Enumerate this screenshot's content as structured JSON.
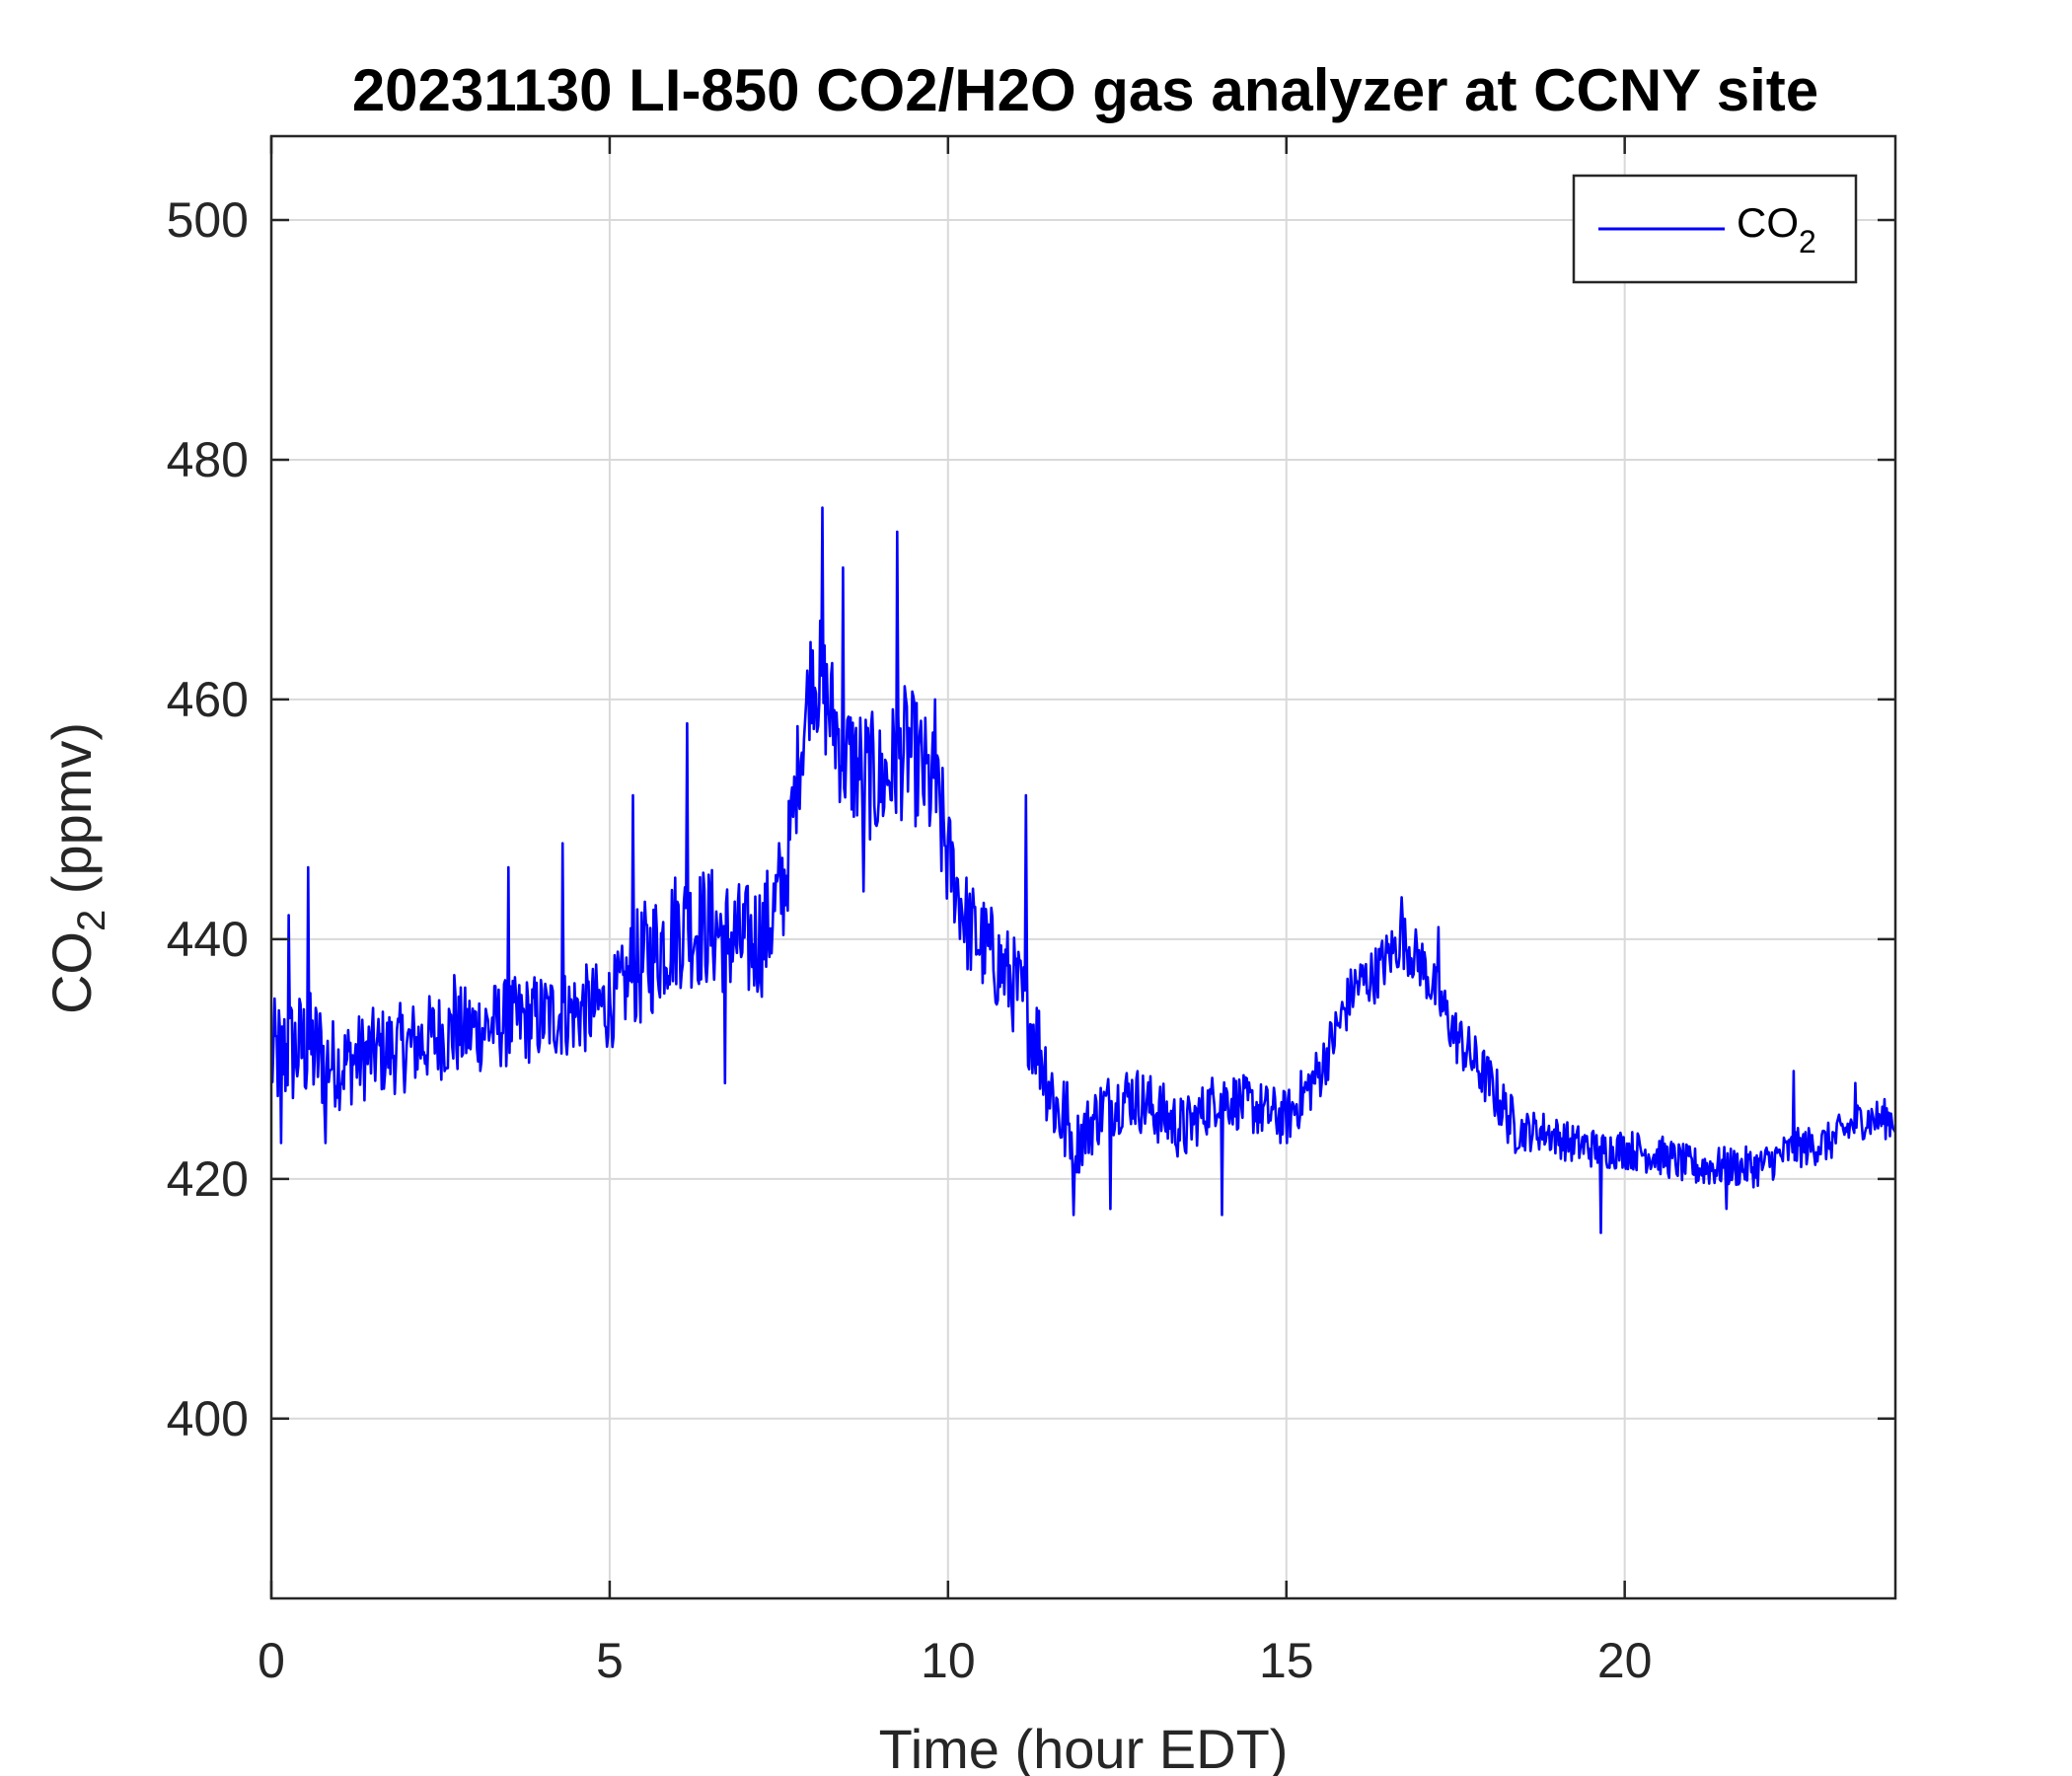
{
  "chart_data": {
    "type": "line",
    "title": "20231130 LI-850 CO2/H2O gas analyzer at CCNY site",
    "xlabel": "Time (hour EDT)",
    "ylabel": {
      "base": "CO",
      "sub": "2",
      "rest": " (ppmv)"
    },
    "xlim": [
      0,
      24
    ],
    "ylim": [
      385,
      507
    ],
    "xticks": [
      0,
      5,
      10,
      15,
      20
    ],
    "yticks": [
      400,
      420,
      440,
      460,
      480,
      500
    ],
    "grid": true,
    "legend_position": "top-right",
    "colors": {
      "line": "#0000ff",
      "grid": "#d9d9d9",
      "axis": "#262626"
    },
    "series": [
      {
        "name": {
          "base": "CO",
          "sub": "2"
        },
        "keypoints": [
          [
            0,
            430
          ],
          [
            0.5,
            431
          ],
          [
            1,
            429.5
          ],
          [
            1.5,
            430.5
          ],
          [
            2,
            431
          ],
          [
            2.5,
            432
          ],
          [
            3,
            432.5
          ],
          [
            3.5,
            433
          ],
          [
            4,
            433.5
          ],
          [
            4.5,
            434
          ],
          [
            5,
            434.5
          ],
          [
            5.5,
            438
          ],
          [
            6,
            441
          ],
          [
            6.5,
            441
          ],
          [
            7,
            439.5
          ],
          [
            7.3,
            440.5
          ],
          [
            7.6,
            445
          ],
          [
            7.8,
            455
          ],
          [
            8,
            463
          ],
          [
            8.2,
            460
          ],
          [
            8.5,
            455
          ],
          [
            9,
            453
          ],
          [
            9.4,
            456
          ],
          [
            9.8,
            452
          ],
          [
            10,
            447
          ],
          [
            10.3,
            441
          ],
          [
            10.6,
            439
          ],
          [
            11,
            436
          ],
          [
            11.3,
            432
          ],
          [
            11.6,
            426
          ],
          [
            11.9,
            423
          ],
          [
            12.3,
            426
          ],
          [
            12.7,
            427
          ],
          [
            13,
            426
          ],
          [
            13.5,
            424
          ],
          [
            14,
            427
          ],
          [
            14.5,
            426
          ],
          [
            15,
            425
          ],
          [
            15.5,
            429
          ],
          [
            16,
            436
          ],
          [
            16.3,
            437
          ],
          [
            16.7,
            440
          ],
          [
            17,
            438
          ],
          [
            17.5,
            432
          ],
          [
            18,
            428
          ],
          [
            18.4,
            424
          ],
          [
            18.8,
            424
          ],
          [
            19.2,
            423
          ],
          [
            19.6,
            422.5
          ],
          [
            20,
            422.5
          ],
          [
            20.5,
            422
          ],
          [
            21,
            421
          ],
          [
            21.5,
            421
          ],
          [
            22,
            421
          ],
          [
            22.5,
            422.5
          ],
          [
            23,
            423
          ],
          [
            23.5,
            425
          ],
          [
            24,
            425
          ]
        ],
        "spikes": [
          [
            0.55,
            446
          ],
          [
            0.25,
            442
          ],
          [
            0.15,
            423
          ],
          [
            0.8,
            423
          ],
          [
            2.7,
            437
          ],
          [
            3.5,
            446
          ],
          [
            4.3,
            448
          ],
          [
            5.35,
            452
          ],
          [
            6.15,
            458
          ],
          [
            6.7,
            428
          ],
          [
            8.15,
            476
          ],
          [
            8.45,
            471
          ],
          [
            8.75,
            444
          ],
          [
            9.25,
            474
          ],
          [
            9.8,
            460
          ],
          [
            11.15,
            452
          ],
          [
            11.85,
            417
          ],
          [
            12.4,
            417.5
          ],
          [
            14.05,
            417
          ],
          [
            16.7,
            443.5
          ],
          [
            17.25,
            441
          ],
          [
            19.65,
            415.5
          ],
          [
            21.5,
            417.5
          ],
          [
            22.5,
            429
          ],
          [
            23.4,
            428
          ]
        ]
      }
    ]
  }
}
